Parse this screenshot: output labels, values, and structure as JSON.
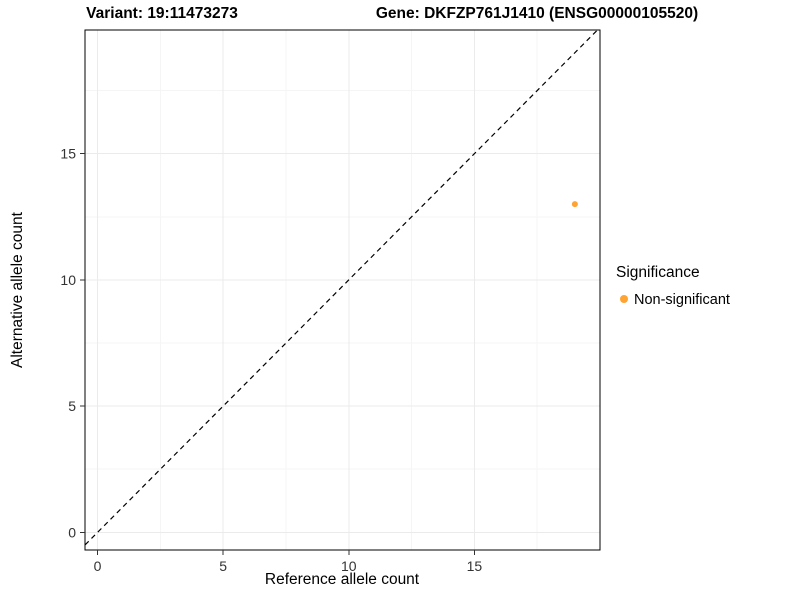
{
  "titles": {
    "left": "Variant: 19:11473273",
    "right": "Gene: DKFZP761J1410 (ENSG00000105520)"
  },
  "chart_data": {
    "type": "scatter",
    "xlabel": "Reference allele count",
    "ylabel": "Alternative allele count",
    "xlim": [
      -0.5,
      20
    ],
    "ylim": [
      -0.7,
      19.9
    ],
    "xticks": [
      0,
      5,
      10,
      15
    ],
    "yticks": [
      0,
      5,
      10,
      15
    ],
    "xminor": [
      2.5,
      7.5,
      12.5,
      17.5
    ],
    "yminor": [
      2.5,
      7.5,
      12.5,
      17.5
    ],
    "grid": true,
    "panel_border_color": "#000000",
    "major_grid_color": "#ebebeb",
    "minor_grid_color": "#f5f5f5",
    "identity_line": {
      "style": "dashed",
      "from": -1,
      "to": 21,
      "color": "#000000"
    },
    "series": [
      {
        "name": "Non-significant",
        "color": "#FFA333",
        "points": [
          {
            "x": 19,
            "y": 13
          }
        ]
      }
    ],
    "legend": {
      "position": "right",
      "title": "Significance",
      "items": [
        {
          "label": "Non-significant",
          "color": "#FFA333"
        }
      ]
    }
  }
}
